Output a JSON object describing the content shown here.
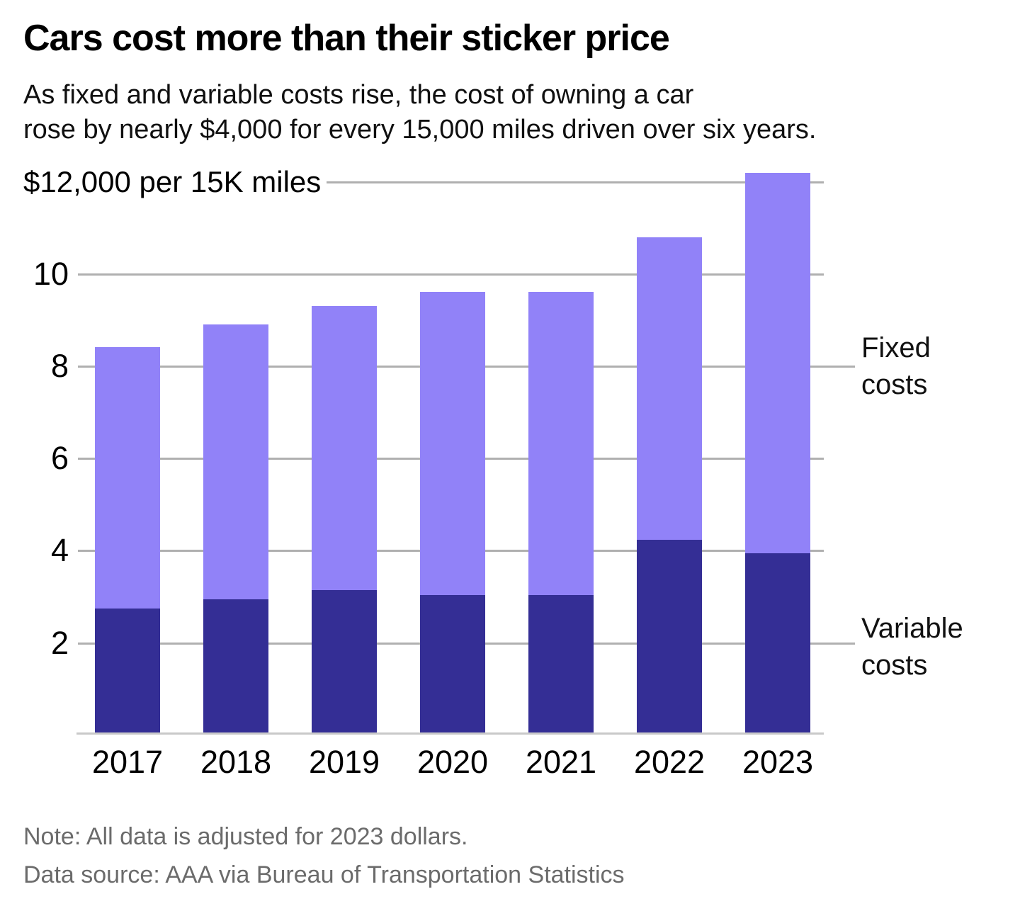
{
  "header": {
    "title": "Cars cost more than their sticker price",
    "subtitle_line1": "As fixed and variable costs rise, the cost of owning a car",
    "subtitle_line2": "rose by nearly $4,000 for every 15,000 miles driven over six years."
  },
  "chart_data": {
    "type": "bar",
    "stacked": true,
    "title": "Cars cost more than their sticker price",
    "subtitle": "As fixed and variable costs rise, the cost of owning a car rose by nearly $4,000 for every 15,000 miles driven over six years.",
    "unit": "thousand dollars per 15K miles",
    "categories": [
      "2017",
      "2018",
      "2019",
      "2020",
      "2021",
      "2022",
      "2023"
    ],
    "series": [
      {
        "name": "Variable costs",
        "color": "#342E95",
        "values": [
          2.7,
          2.9,
          3.1,
          3.0,
          3.0,
          4.2,
          3.9
        ]
      },
      {
        "name": "Fixed costs",
        "color": "#9182F8",
        "values": [
          5.7,
          6.0,
          6.2,
          6.6,
          6.6,
          6.6,
          8.3
        ]
      }
    ],
    "totals": [
      8.4,
      8.9,
      9.3,
      9.6,
      9.6,
      10.8,
      12.2
    ],
    "y_axis": {
      "top_label": "$12,000 per 15K miles",
      "ticks": [
        "10",
        "8",
        "6",
        "4",
        "2"
      ],
      "min": 0,
      "max": 12,
      "gridlines": true
    },
    "legend_position": "right",
    "grid_color": "#b0b0b0"
  },
  "footer": {
    "note": "Note: All data is adjusted for 2023 dollars.",
    "source": "Data source: AAA via Bureau of Transportation Statistics"
  }
}
